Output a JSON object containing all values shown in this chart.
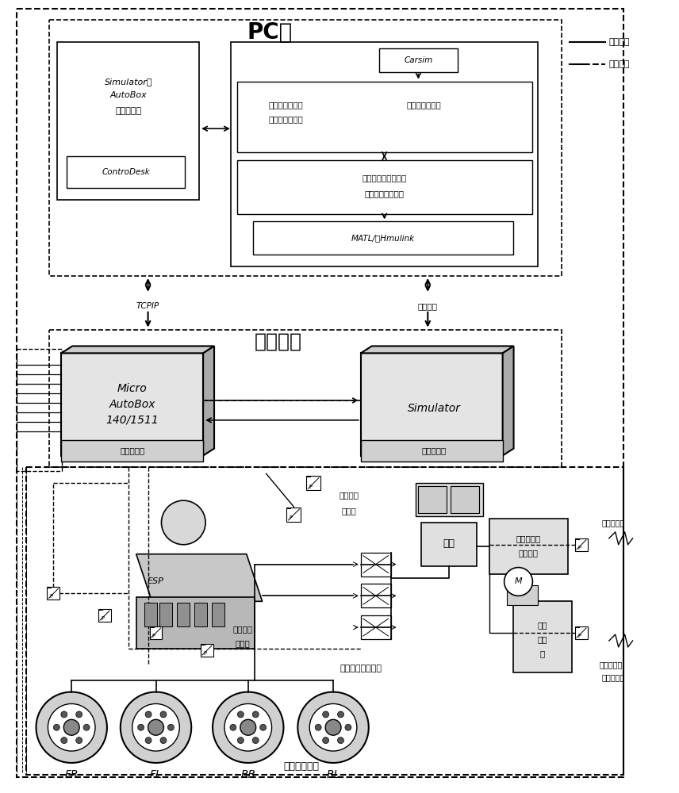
{
  "bg_color": "#ffffff",
  "title_pc": "PC机",
  "title_rt": "实时平台",
  "legend_solid": "液压管路",
  "legend_dashed": "控制信号",
  "text_simulator_autobox": "Simulator、\nAutoBox\n上位机软件",
  "text_controdesk": "ControDesk",
  "text_carsim": "Carsim",
  "text_algo": "电子机械制动助",
  "text_algo2": "力器控制器算法",
  "text_vehicle_dyn": "汽车动力学模型",
  "text_signal": "信号采集与发射、车",
  "text_signal2": "辆动力学集成模型",
  "text_matlab": "MATL/渡Hmulink",
  "text_tcpip": "TCPIP",
  "text_highbus": "高速总线",
  "text_micro": "Micro\nAutoBox\n140/1511",
  "text_keprog1": "可编程电源",
  "text_keprog2": "可编程电源",
  "text_esp": "ESP",
  "text_main_cyl": "主缸",
  "text_embb": "电子机械制",
  "text_embb2": "动助力器",
  "text_motor": "M",
  "text_vacuum": "真空助力器",
  "text_zhucy_sensor": "主缸压力\n传感器",
  "text_lunci_sensor": "轮缸压力\n传感器",
  "text_shuang": "双通道三位二通阀",
  "text_qian": "镑盘式制动器",
  "text_pedal1": "踏板力信号",
  "text_encoder": "旋转编码器",
  "text_pedal2": "踏板力信号",
  "labels_wheel": [
    "FR",
    "FL",
    "RR",
    "RL"
  ]
}
